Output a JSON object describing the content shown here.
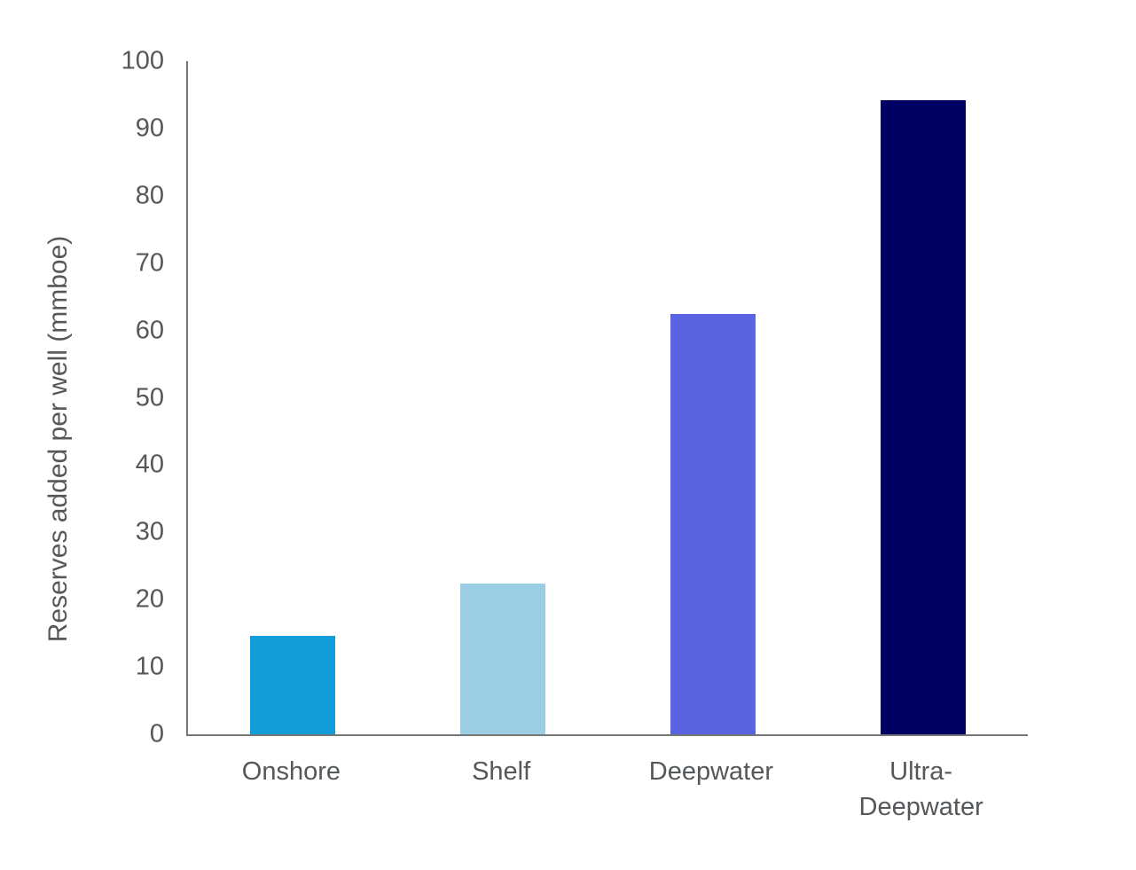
{
  "chart_data": {
    "type": "bar",
    "title": "",
    "xlabel": "",
    "ylabel": "Reserves added per well (mmboe)",
    "categories": [
      "Onshore",
      "Shelf",
      "Deepwater",
      "Ultra-\nDeepwater"
    ],
    "values": [
      14.6,
      22.4,
      62.4,
      94.2
    ],
    "colors": [
      "#129CD8",
      "#9BCDE3",
      "#5A64E0",
      "#000062"
    ],
    "ylim": [
      0,
      100
    ],
    "ytick_step": 10,
    "ytick_labels": [
      "0",
      "10",
      "20",
      "30",
      "40",
      "50",
      "60",
      "70",
      "80",
      "90",
      "100"
    ],
    "grid": "off",
    "legend": "none",
    "axis_color": "#767676",
    "label_color": "#54585B"
  }
}
